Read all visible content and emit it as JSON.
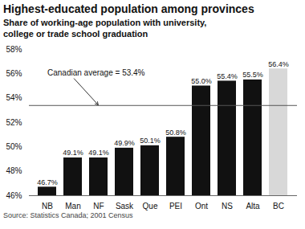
{
  "chart_data": {
    "type": "bar",
    "title": "Highest-educated population among provinces",
    "subtitle": "Share of working-age population with university,\ncollege or trade school graduation",
    "source": "Source: Statistics Canada; 2001 Census",
    "categories": [
      "NB",
      "Man",
      "NF",
      "Sask",
      "Que",
      "PEI",
      "Ont",
      "NS",
      "Alta",
      "BC"
    ],
    "values": [
      46.7,
      49.1,
      49.1,
      49.9,
      50.1,
      50.8,
      55.0,
      55.4,
      55.5,
      56.4
    ],
    "value_labels": [
      "46.7%",
      "49.1%",
      "49.1%",
      "49.9%",
      "50.1%",
      "50.8%",
      "55.0%",
      "55.4%",
      "55.5%",
      "56.4%"
    ],
    "data_labels": true,
    "colors": [
      "#111111",
      "#111111",
      "#111111",
      "#111111",
      "#111111",
      "#111111",
      "#111111",
      "#111111",
      "#111111",
      "#d8d8d8"
    ],
    "ylim": [
      46,
      58
    ],
    "yticks": [
      {
        "value": 46,
        "label": "46%"
      },
      {
        "value": 48,
        "label": "48%"
      },
      {
        "value": 50,
        "label": "50%"
      },
      {
        "value": 52,
        "label": "52%"
      },
      {
        "value": 54,
        "label": "54%"
      },
      {
        "value": 56,
        "label": "56%"
      },
      {
        "value": 58,
        "label": "58%"
      }
    ],
    "grid": false,
    "reference_line": {
      "value": 53.4,
      "label": "Canadian average = 53.4%"
    }
  }
}
